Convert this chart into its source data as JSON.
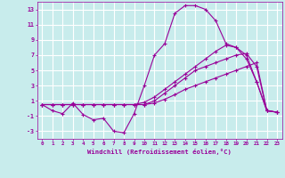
{
  "xlabel": "Windchill (Refroidissement éolien,°C)",
  "background_color": "#c8ecec",
  "grid_color": "#ffffff",
  "line_color": "#990099",
  "xlim": [
    -0.5,
    23.5
  ],
  "ylim": [
    -4,
    14
  ],
  "yticks": [
    -3,
    -1,
    1,
    3,
    5,
    7,
    9,
    11,
    13
  ],
  "xticks": [
    0,
    1,
    2,
    3,
    4,
    5,
    6,
    7,
    8,
    9,
    10,
    11,
    12,
    13,
    14,
    15,
    16,
    17,
    18,
    19,
    20,
    21,
    22,
    23
  ],
  "hours": [
    0,
    1,
    2,
    3,
    4,
    5,
    6,
    7,
    8,
    9,
    10,
    11,
    12,
    13,
    14,
    15,
    16,
    17,
    18,
    19,
    20,
    21,
    22,
    23
  ],
  "line1": [
    0.5,
    0.5,
    0.5,
    0.5,
    0.5,
    0.5,
    0.5,
    0.5,
    0.5,
    0.5,
    0.5,
    0.7,
    1.2,
    1.8,
    2.5,
    3.0,
    3.5,
    4.0,
    4.5,
    5.0,
    5.5,
    6.0,
    -0.3,
    -0.5
  ],
  "line2": [
    0.5,
    0.5,
    0.5,
    0.5,
    0.5,
    0.5,
    0.5,
    0.5,
    0.5,
    0.5,
    0.8,
    1.5,
    2.5,
    3.5,
    4.5,
    5.5,
    6.5,
    7.5,
    8.3,
    8.0,
    7.0,
    3.5,
    -0.3,
    -0.5
  ],
  "line3": [
    0.5,
    -0.3,
    -0.7,
    0.7,
    -0.8,
    -1.5,
    -1.3,
    -3.0,
    -3.2,
    -0.7,
    3.0,
    7.0,
    8.5,
    12.5,
    13.5,
    13.5,
    13.0,
    11.5,
    8.5,
    8.0,
    6.5,
    3.5,
    -0.3,
    -0.5
  ],
  "line4": [
    0.5,
    0.5,
    0.5,
    0.5,
    0.5,
    0.5,
    0.5,
    0.5,
    0.5,
    0.5,
    0.5,
    1.0,
    2.0,
    3.0,
    4.0,
    5.0,
    5.5,
    6.0,
    6.5,
    7.0,
    7.2,
    5.5,
    -0.3,
    -0.5
  ]
}
